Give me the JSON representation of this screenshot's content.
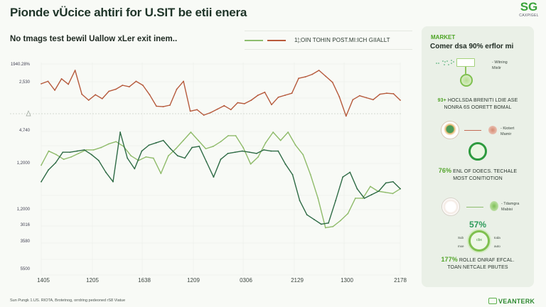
{
  "header": {
    "title": "Pionde vÜcice ahtiri for U.SIT be etii enera",
    "subtitle": "No tmags test bewil Uallow xLer exit inem..",
    "logo_mark": "SG",
    "logo_text": "CAXPIGEL"
  },
  "legend": {
    "label": "1¦;OIN TOHIN POST.MI:ICH GIIALLT",
    "swatches": [
      "#8dbd6e",
      "#b9593a"
    ]
  },
  "colors": {
    "red_series": "#b65a3c",
    "dark_green_series": "#2e6b45",
    "light_green_series": "#8fbb6a",
    "accent_green": "#4aa321",
    "grid": "#e8ece6"
  },
  "chart_data": [
    {
      "type": "line",
      "title": "",
      "xlabel": "",
      "ylabel": "",
      "ytick_labels": [
        "1940.28%",
        "2,530"
      ],
      "baseline_marker": "triangle",
      "grid": true,
      "series": [
        {
          "name": "red",
          "color": "#b65a3c",
          "values": [
            0.63,
            0.68,
            0.5,
            0.73,
            0.62,
            0.9,
            0.42,
            0.3,
            0.41,
            0.33,
            0.48,
            0.52,
            0.6,
            0.57,
            0.68,
            0.6,
            0.41,
            0.18,
            0.17,
            0.2,
            0.52,
            0.68,
            0.08,
            0.11,
            0.0,
            0.05,
            0.12,
            0.19,
            0.11,
            0.25,
            0.23,
            0.3,
            0.4,
            0.46,
            0.21,
            0.36,
            0.4,
            0.44,
            0.74,
            0.77,
            0.82,
            0.9,
            0.78,
            0.66,
            0.37,
            -0.02,
            0.31,
            0.39,
            0.35,
            0.31,
            0.42,
            0.44,
            0.43,
            0.3
          ]
        }
      ]
    },
    {
      "type": "line",
      "title": "",
      "xlabel": "",
      "ylabel": "",
      "ytick_labels": [
        "4,740",
        "1,2000",
        "1,2000",
        "3016",
        "3580",
        "5500"
      ],
      "x_tick_labels": [
        "1405",
        "1205",
        "1638",
        "1209",
        "0306",
        "2129",
        "1300",
        "2178"
      ],
      "grid": true,
      "series": [
        {
          "name": "dark green",
          "color": "#2e6b45",
          "values": [
            0.58,
            0.68,
            0.74,
            0.83,
            0.83,
            0.84,
            0.85,
            0.81,
            0.76,
            0.66,
            0.58,
            1.0,
            0.78,
            0.69,
            0.84,
            0.89,
            0.91,
            0.93,
            0.86,
            0.8,
            0.78,
            0.87,
            0.88,
            0.75,
            0.62,
            0.77,
            0.82,
            0.83,
            0.84,
            0.83,
            0.82,
            0.85,
            0.84,
            0.84,
            0.73,
            0.64,
            0.42,
            0.3,
            0.26,
            0.22,
            0.23,
            0.42,
            0.62,
            0.66,
            0.52,
            0.44,
            0.47,
            0.5,
            0.57,
            0.58,
            0.52
          ]
        },
        {
          "name": "light green",
          "color": "#8fbb6a",
          "values": [
            0.72,
            0.84,
            0.81,
            0.77,
            0.79,
            0.82,
            0.85,
            0.85,
            0.87,
            0.9,
            0.92,
            0.88,
            0.8,
            0.76,
            0.79,
            0.78,
            0.65,
            0.8,
            0.86,
            0.93,
            1.0,
            0.93,
            0.86,
            0.88,
            0.92,
            0.97,
            0.97,
            0.87,
            0.73,
            0.79,
            0.91,
            1.0,
            0.93,
            1.0,
            0.89,
            0.81,
            0.64,
            0.44,
            0.19,
            0.2,
            0.25,
            0.31,
            0.44,
            0.44,
            0.54,
            0.5,
            0.49,
            0.48,
            0.52
          ]
        }
      ]
    }
  ],
  "footer": {
    "source": "Sun Pungk 1.US. RIOTA, Brotetnog, orrdring pedeoned rS8 Viatue"
  },
  "panel": {
    "kicker": "MARKET",
    "headline": "Comer dsa 90% erflor mi",
    "section1_note_line1": "- Witning",
    "section1_note_line2": "Mixlir",
    "section2_pct": "93+",
    "section2_line1": "HOCLSDA BRENITI LDIE ASE",
    "section2_line2": "NONRA 6S OORETT BOMAL",
    "section2_note_line1": "- Kiotert",
    "section2_note_line2": "Mamir",
    "section3_pct": "76%",
    "section3_line1": "ENL OF DOECS. TECHALE",
    "section3_line2": "MOST CONITIOTION",
    "section4_note_line1": "- Tdamgra",
    "section4_note_line2": "Mabisi",
    "section4_big_pct": "57%",
    "gauge_labels": [
      "Sub",
      "toda",
      "mxe",
      "auto"
    ],
    "gauge_center": "cbx",
    "section5_pct": "177%",
    "section5_line1": "ROLLE ONRAF EFCAL.",
    "section5_line2": "TOAN NETCALE PBUTES"
  },
  "brand": {
    "name": "VEANTERK"
  }
}
